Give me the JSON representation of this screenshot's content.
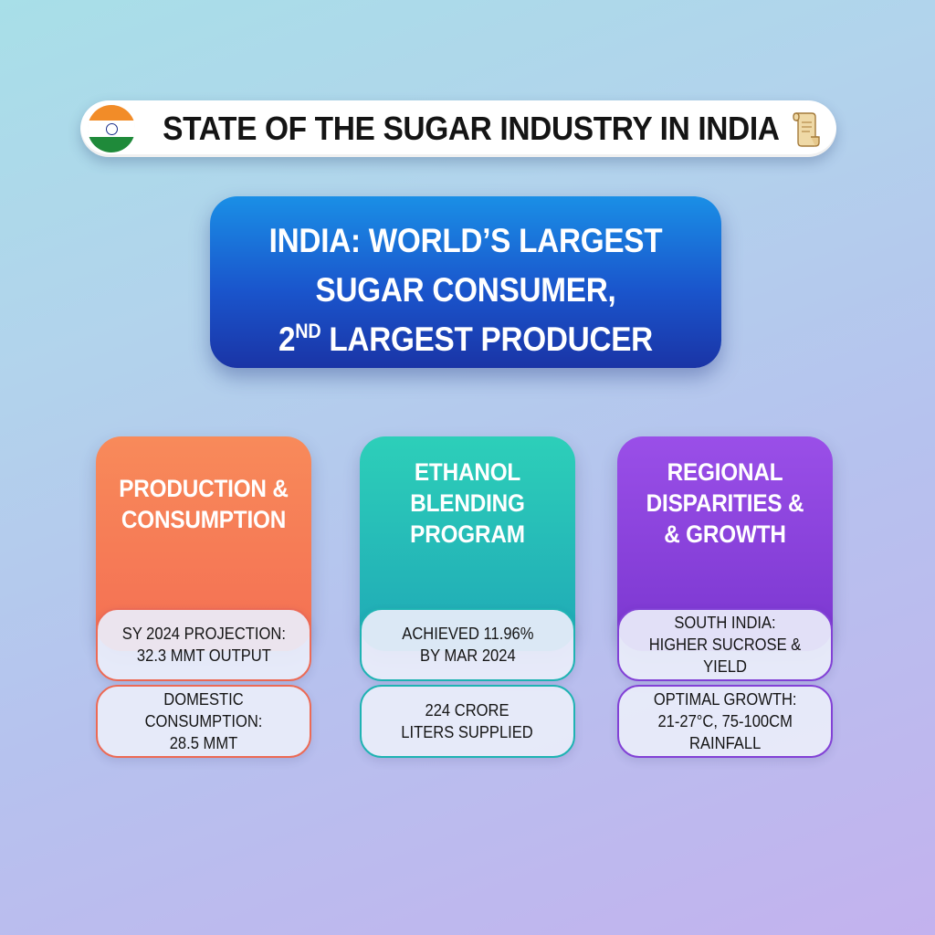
{
  "title": {
    "text": "STATE OF THE SUGAR INDUSTRY IN INDIA",
    "left_icon": "india-flag-icon",
    "right_icon": "scroll-icon"
  },
  "headline": {
    "line1": "INDIA: WORLD’S LARGEST",
    "line2": "SUGAR CONSUMER,",
    "line3_prefix": "2",
    "line3_sup": "ND",
    "line3_rest": " LARGEST PRODUCER"
  },
  "cards": [
    {
      "title_lines": [
        "PRODUCTION &",
        "CONSUMPTION"
      ],
      "stats": [
        "SY 2024 PROJECTION:\n32.3 MMT OUTPUT",
        "DOMESTIC CONSUMPTION:\n28.5 MMT"
      ],
      "color": "#f46f53"
    },
    {
      "title_lines": [
        "ETHANOL",
        "BLENDING",
        "PROGRAM"
      ],
      "stats": [
        "ACHIEVED 11.96%\nBY MAR 2024",
        "224 CRORE\nLITERS SUPPLIED"
      ],
      "color": "#1fa8b6"
    },
    {
      "title_lines": [
        "REGIONAL",
        "DISPARITIES &",
        "& GROWTH"
      ],
      "stats": [
        "SOUTH INDIA:\nHIGHER SUCROSE & YIELD",
        "OPTIMAL GROWTH:\n21-27°C, 75-100CM\nRAINFALL"
      ],
      "color": "#7a36cf"
    }
  ],
  "colors": {
    "headline_top": "#1a8fe6",
    "headline_bottom": "#1a34a6",
    "flag_saffron": "#f28c28",
    "flag_white": "#ffffff",
    "flag_green": "#1f8a3a",
    "flag_chakra": "#1c2f8a"
  }
}
